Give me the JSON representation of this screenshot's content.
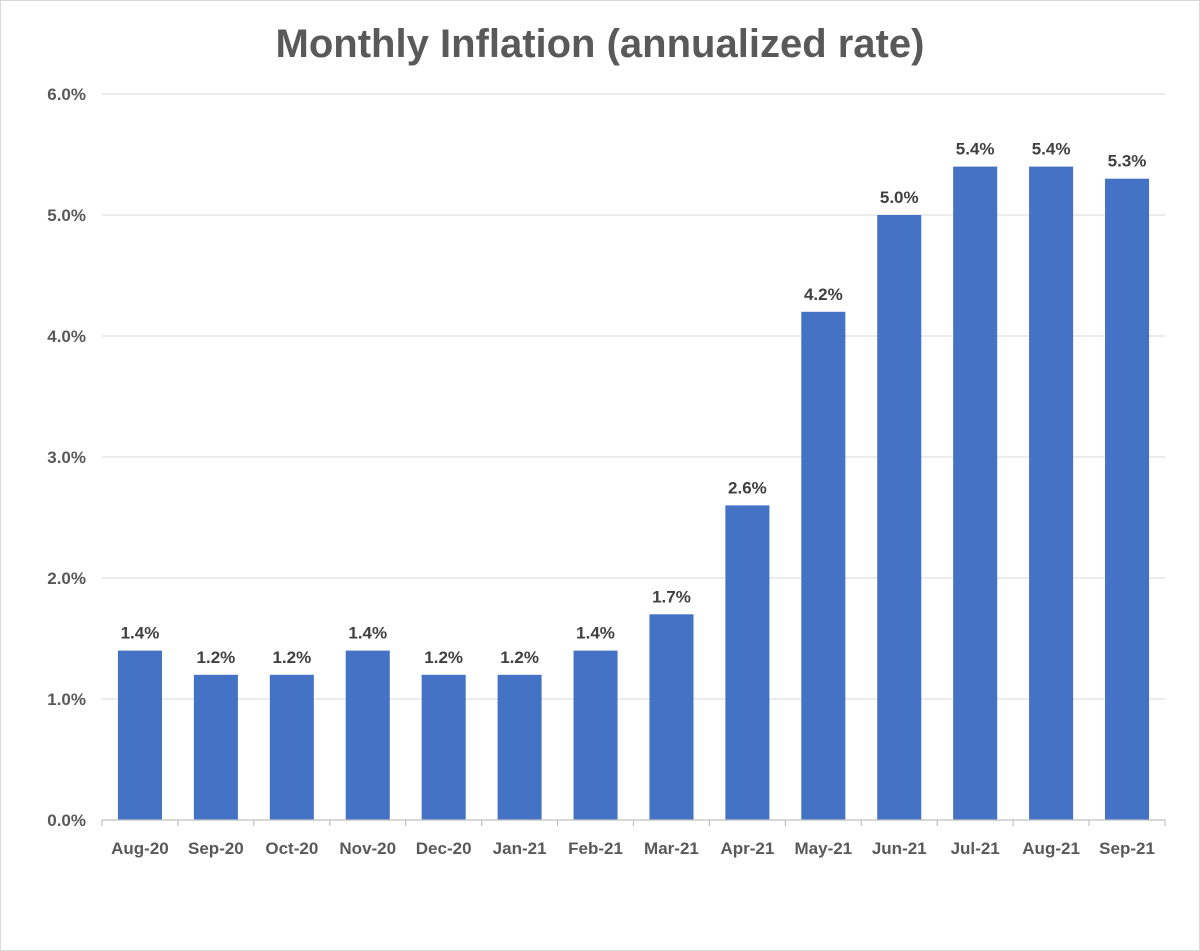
{
  "chart_data": {
    "type": "bar",
    "title": "Monthly Inflation (annualized rate)",
    "xlabel": "",
    "ylabel": "",
    "categories": [
      "Aug-20",
      "Sep-20",
      "Oct-20",
      "Nov-20",
      "Dec-20",
      "Jan-21",
      "Feb-21",
      "Mar-21",
      "Apr-21",
      "May-21",
      "Jun-21",
      "Jul-21",
      "Aug-21",
      "Sep-21"
    ],
    "values": [
      1.4,
      1.2,
      1.2,
      1.4,
      1.2,
      1.2,
      1.4,
      1.7,
      2.6,
      4.2,
      5.0,
      5.4,
      5.4,
      5.3
    ],
    "data_labels": [
      "1.4%",
      "1.2%",
      "1.2%",
      "1.4%",
      "1.2%",
      "1.2%",
      "1.4%",
      "1.7%",
      "2.6%",
      "4.2%",
      "5.0%",
      "5.4%",
      "5.4%",
      "5.3%"
    ],
    "ylim": [
      0,
      6
    ],
    "y_ticks": [
      0,
      1,
      2,
      3,
      4,
      5,
      6
    ],
    "y_tick_labels": [
      "0.0%",
      "1.0%",
      "2.0%",
      "3.0%",
      "4.0%",
      "5.0%",
      "6.0%"
    ],
    "grid": true,
    "legend": "none",
    "bar_color": "#4472C4",
    "grid_color": "#d9d9d9"
  }
}
